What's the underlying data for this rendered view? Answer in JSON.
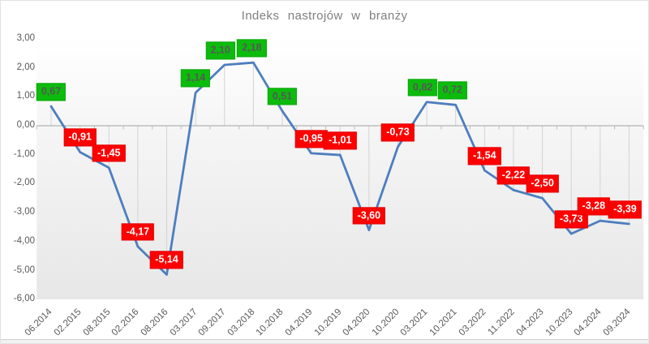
{
  "title": "Indeks nastrojów w branży",
  "chart_data": {
    "type": "line",
    "title": "Indeks nastrojów w branży",
    "categories": [
      "06.2014",
      "02.2015",
      "08.2015",
      "02.2016",
      "08.2016",
      "03.2017",
      "09.2017",
      "03.2018",
      "10.2018",
      "04.2019",
      "10.2019",
      "04.2020",
      "10.2020",
      "03.2021",
      "10.2021",
      "03.2022",
      "11.2022",
      "04.2023",
      "10.2023",
      "04.2024",
      "09.2024"
    ],
    "values": [
      0.67,
      -0.91,
      -1.45,
      -4.17,
      -5.14,
      1.14,
      2.1,
      2.18,
      0.51,
      -0.95,
      -1.01,
      -3.6,
      -0.73,
      0.82,
      0.72,
      -1.54,
      -2.22,
      -2.5,
      -3.73,
      -3.28,
      -3.39
    ],
    "value_labels": [
      "0,67",
      "-0,91",
      "-1,45",
      "-4,17",
      "-5,14",
      "1,14",
      "2,10",
      "2,18",
      "0,51",
      "-0,95",
      "-1,01",
      "-3,60",
      "-0,73",
      "0,82",
      "0,72",
      "-1,54",
      "-2,22",
      "-2,50",
      "-3,73",
      "-3,28",
      "-3,39"
    ],
    "y_tick_values": [
      3,
      2,
      1,
      0,
      -1,
      -2,
      -3,
      -4,
      -5,
      -6
    ],
    "y_tick_labels": [
      "3,00",
      "2,00",
      "1,00",
      "0,00",
      "-1,00",
      "-2,00",
      "-3,00",
      "-4,00",
      "-5,00",
      "-6,00"
    ],
    "ylim": [
      -6,
      3
    ],
    "xlabel": "",
    "ylabel": "",
    "grid": "vertical-drop-lines-to-zero-axis",
    "legend": "none",
    "colors": {
      "line": "#4d7ebf",
      "positive_label_bg": "#0cbc0c",
      "positive_label_text": "#575757",
      "negative_label_bg": "#fe0000",
      "negative_label_text": "#ffffff",
      "zero_axis": "#a3a3a3",
      "drop_line": "#d3d3d3",
      "axis_tick": "#bdbdbd",
      "title_text": "#7f7f7f",
      "axis_text": "#595959",
      "plot_fill_top": "#ffffff",
      "plot_fill_bottom": "#e7e7e7"
    }
  }
}
